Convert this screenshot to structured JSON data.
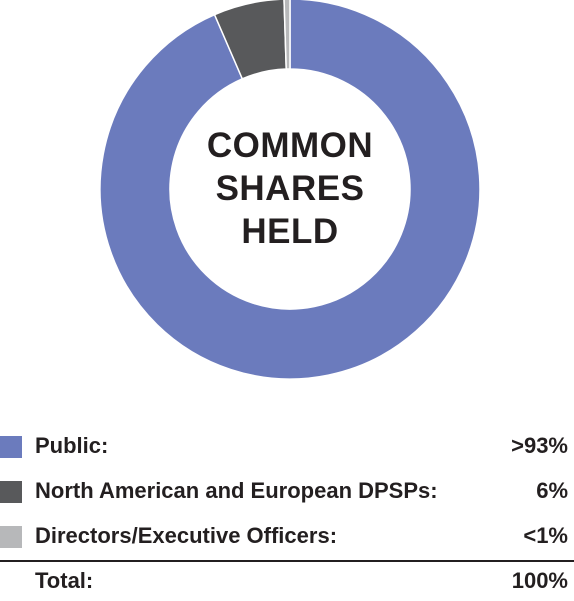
{
  "chart_data": {
    "type": "pie",
    "style": "donut",
    "title": "COMMON SHARES HELD",
    "center_label_lines": [
      "COMMON",
      "SHARES",
      "HELD"
    ],
    "slices": [
      {
        "label": "Public:",
        "display_value": ">93%",
        "value": 93.5,
        "color": "#6b7bbd"
      },
      {
        "label": "North American and European DPSPs:",
        "display_value": "6%",
        "value": 6.0,
        "color": "#58595b"
      },
      {
        "label": "Directors/Executive Officers:",
        "display_value": "<1%",
        "value": 0.5,
        "color": "#b7b8ba"
      }
    ],
    "total": {
      "label": "Total:",
      "display_value": "100%"
    }
  }
}
